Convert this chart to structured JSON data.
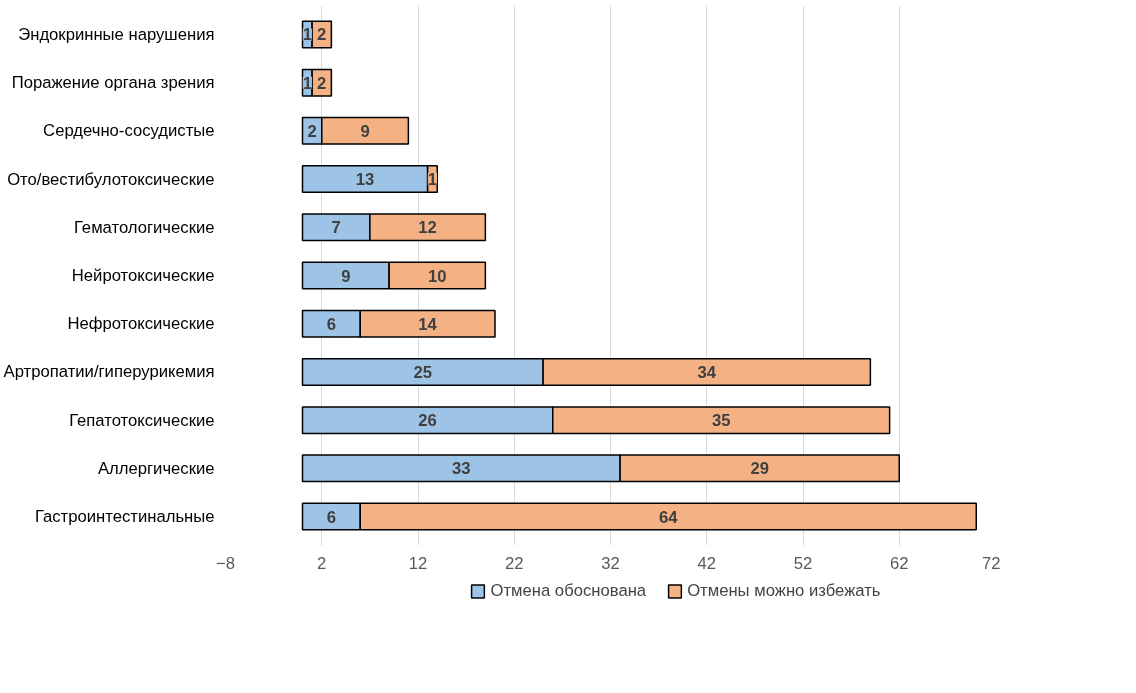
{
  "chart_data": {
    "type": "bar",
    "orientation": "horizontal",
    "stacked": true,
    "categories": [
      "Эндокринные нарушения",
      "Поражение органа зрения",
      "Сердечно-сосудистые",
      "Ото/вестибулотоксические",
      "Гематологические",
      "Нейротоксические",
      "Нефротоксические",
      "Артропатии/гиперурикемия",
      "Гепатотоксические",
      "Аллергические",
      "Гастроинтестинальные"
    ],
    "series": [
      {
        "name": "Отмена обоснована",
        "color": "#9dc3e6",
        "values": [
          1,
          1,
          2,
          13,
          7,
          9,
          6,
          25,
          26,
          33,
          6
        ]
      },
      {
        "name": "Отмены можно избежать",
        "color": "#f4b183",
        "values": [
          2,
          2,
          9,
          1,
          12,
          10,
          14,
          34,
          35,
          29,
          64
        ]
      }
    ],
    "xlim": [
      -8,
      72
    ],
    "xticks": [
      -8,
      2,
      12,
      22,
      32,
      42,
      52,
      62,
      72
    ],
    "grid": "x",
    "legend": "bottom",
    "data_labels": true
  }
}
